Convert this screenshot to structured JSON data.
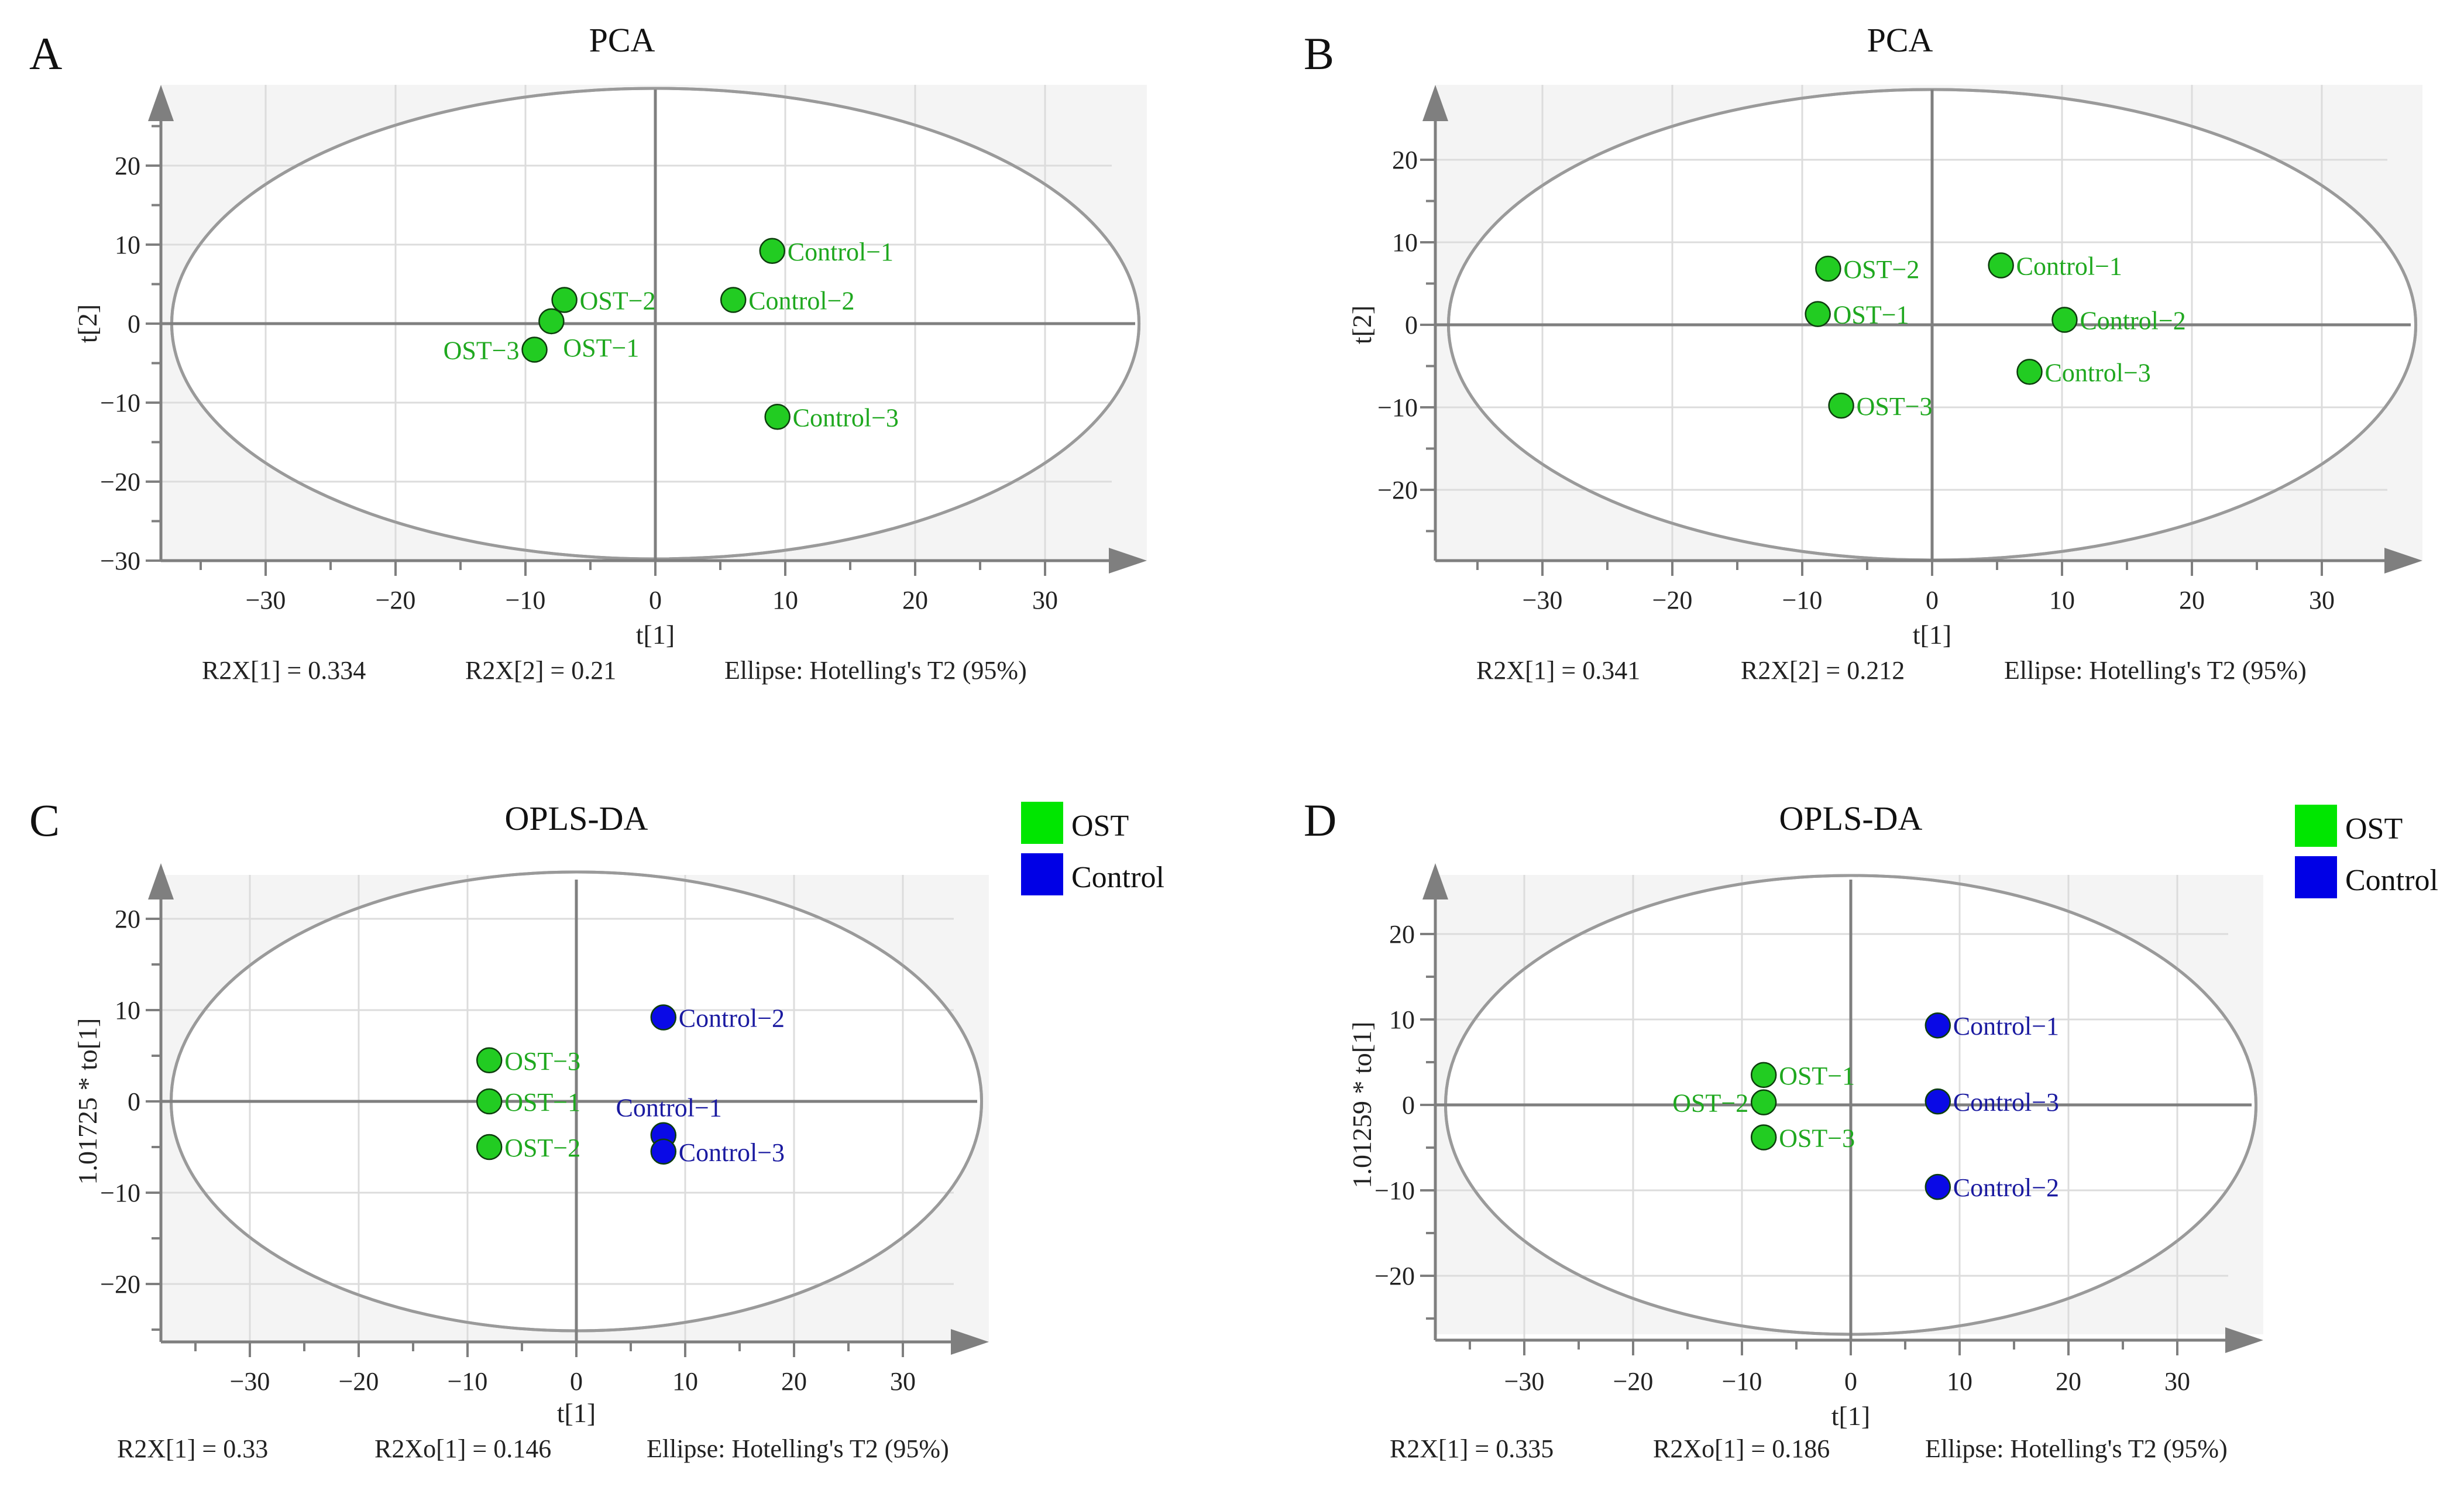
{
  "chart_data": [
    {
      "type": "scatter",
      "panel_letter": "A",
      "title": "PCA",
      "xlabel": "t[1]",
      "ylabel": "t[2]",
      "xlim": [
        -38,
        38
      ],
      "ylim": [
        -30,
        30
      ],
      "xticks": [
        -30,
        -20,
        -10,
        0,
        10,
        20,
        30
      ],
      "yticks": [
        20,
        10,
        0,
        -10,
        -20,
        -30
      ],
      "grid": true,
      "ellipse": "Hotelling's T2 (95%)",
      "footer": [
        "R2X[1] = 0.334",
        "R2X[2] = 0.21",
        "Ellipse: Hotelling's T2 (95%)"
      ],
      "points": [
        {
          "label": "Control−1",
          "group": "OST",
          "x": 9,
          "y": 9.2
        },
        {
          "label": "Control−2",
          "group": "OST",
          "x": 6,
          "y": 3
        },
        {
          "label": "Control−3",
          "group": "OST",
          "x": 9.4,
          "y": -11.8
        },
        {
          "label": "OST−2",
          "group": "OST",
          "x": -7,
          "y": 3
        },
        {
          "label": "OST−1",
          "group": "OST",
          "x": -8,
          "y": 0.3
        },
        {
          "label": "OST−3",
          "group": "OST",
          "x": -9.3,
          "y": -3.3
        }
      ]
    },
    {
      "type": "scatter",
      "panel_letter": "B",
      "title": "PCA",
      "xlabel": "t[1]",
      "ylabel": "t[2]",
      "xlim": [
        -38,
        38
      ],
      "ylim": [
        -29,
        29
      ],
      "xticks": [
        -30,
        -20,
        -10,
        0,
        10,
        20,
        30
      ],
      "yticks": [
        20,
        10,
        0,
        -10,
        -20
      ],
      "grid": true,
      "ellipse": "Hotelling's T2 (95%)",
      "footer": [
        "R2X[1] = 0.341",
        "R2X[2] = 0.212",
        "Ellipse: Hotelling's T2 (95%)"
      ],
      "points": [
        {
          "label": "OST−2",
          "group": "OST",
          "x": -8,
          "y": 6.8
        },
        {
          "label": "OST−1",
          "group": "OST",
          "x": -8.8,
          "y": 1.3
        },
        {
          "label": "OST−3",
          "group": "OST",
          "x": -7,
          "y": -9.8
        },
        {
          "label": "Control−1",
          "group": "OST",
          "x": 5.3,
          "y": 7.2
        },
        {
          "label": "Control−2",
          "group": "OST",
          "x": 10.2,
          "y": 0.6
        },
        {
          "label": "Control−3",
          "group": "OST",
          "x": 7.5,
          "y": -5.7
        }
      ]
    },
    {
      "type": "scatter",
      "panel_letter": "C",
      "title": "OPLS-DA",
      "xlabel": "t[1]",
      "ylabel": "1.01725 * to[1]",
      "xlim": [
        -38,
        38
      ],
      "ylim": [
        -25,
        25
      ],
      "xticks": [
        -30,
        -20,
        -10,
        0,
        10,
        20,
        30
      ],
      "yticks": [
        20,
        10,
        0,
        -10,
        -20
      ],
      "grid": true,
      "ellipse": "Hotelling's T2 (95%)",
      "footer": [
        "R2X[1] = 0.33",
        "R2Xo[1] = 0.146",
        "Ellipse: Hotelling's T2 (95%)"
      ],
      "legend": [
        {
          "name": "OST",
          "color": "#00e600"
        },
        {
          "name": "Control",
          "color": "#0000e6"
        }
      ],
      "points": [
        {
          "label": "OST−3",
          "group": "OST",
          "x": -8,
          "y": 4.5
        },
        {
          "label": "OST−1",
          "group": "OST",
          "x": -8,
          "y": 0
        },
        {
          "label": "OST−2",
          "group": "OST",
          "x": -8,
          "y": -5
        },
        {
          "label": "Control−2",
          "group": "Control",
          "x": 8,
          "y": 9.2
        },
        {
          "label": "Control−1",
          "group": "Control",
          "x": 8,
          "y": -3.7
        },
        {
          "label": "Control−3",
          "group": "Control",
          "x": 8,
          "y": -5.5
        }
      ]
    },
    {
      "type": "scatter",
      "panel_letter": "D",
      "title": "OPLS-DA",
      "xlabel": "t[1]",
      "ylabel": "1.01259 * to[1]",
      "xlim": [
        -38,
        38
      ],
      "ylim": [
        -27,
        27
      ],
      "xticks": [
        -30,
        -20,
        -10,
        0,
        10,
        20,
        30
      ],
      "yticks": [
        20,
        10,
        0,
        -10,
        -20
      ],
      "grid": true,
      "ellipse": "Hotelling's T2 (95%)",
      "footer": [
        "R2X[1] = 0.335",
        "R2Xo[1] = 0.186",
        "Ellipse: Hotelling's T2 (95%)"
      ],
      "legend": [
        {
          "name": "OST",
          "color": "#00e600"
        },
        {
          "name": "Control",
          "color": "#0000e6"
        }
      ],
      "points": [
        {
          "label": "OST−1",
          "group": "OST",
          "x": -8,
          "y": 3.5
        },
        {
          "label": "OST−2",
          "group": "OST",
          "x": -8,
          "y": 0.3
        },
        {
          "label": "OST−3",
          "group": "OST",
          "x": -8,
          "y": -3.8
        },
        {
          "label": "Control−1",
          "group": "Control",
          "x": 8,
          "y": 9.3
        },
        {
          "label": "Control−3",
          "group": "Control",
          "x": 8,
          "y": 0.4
        },
        {
          "label": "Control−2",
          "group": "Control",
          "x": 8,
          "y": -9.6
        }
      ]
    }
  ],
  "colors": {
    "ost": "#22cc22",
    "ost_text": "#1fa81f",
    "control": "#0a0ae6",
    "control_text": "#1a1aa0",
    "plot_bg": "#f4f4f4",
    "grid": "#dcdcdc",
    "axis": "#7f7f7f",
    "ellipse": "#9a9a9a",
    "legend_ost": "#00e600",
    "legend_control": "#0000e6"
  }
}
